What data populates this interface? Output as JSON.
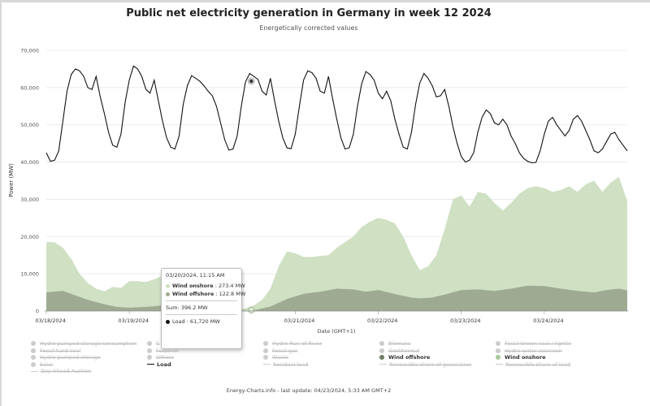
{
  "title": "Public net electricity generation in Germany in week 12 2024",
  "subtitle": "Energetically corrected values",
  "footer": "Energy-Charts.info - last update: 04/23/2024, 5:33 AM GMT+2",
  "colors": {
    "load": "#111111",
    "wind_onshore": "#cfe0c3",
    "wind_offshore": "#9eab92",
    "marker": "#aaaaaa"
  },
  "tooltip": {
    "date": "03/20/2024, 11:15 AM",
    "wind_onshore": "Wind onshore",
    "wind_onshore_value": ": 273.4 MW",
    "wind_offshore": "Wind offshore",
    "wind_offshore_value": ": 122.8 MW",
    "sum": "Sum: 396.2 MW",
    "load": "Load",
    "load_value": ": 61,720 MW"
  },
  "legend": [
    {
      "label": "Hydro pumped storage consumption",
      "active": false,
      "icon": "circle"
    },
    {
      "label": "C",
      "active": false,
      "icon": "circle"
    },
    {
      "label": "Hydro Run-of-River",
      "active": false,
      "icon": "circle"
    },
    {
      "label": "Biomass",
      "active": false,
      "icon": "circle"
    },
    {
      "label": "Fossil brown coal / lignite",
      "active": false,
      "icon": "circle"
    },
    {
      "label": "Fossil hard coal",
      "active": false,
      "icon": "circle"
    },
    {
      "label": "Fossil oil",
      "active": false,
      "icon": "circle"
    },
    {
      "label": "Fossil gas",
      "active": false,
      "icon": "circle"
    },
    {
      "label": "Geothermal",
      "active": false,
      "icon": "circle"
    },
    {
      "label": "Hydro water reservoir",
      "active": false,
      "icon": "circle"
    },
    {
      "label": "Hydro pumped storage",
      "active": false,
      "icon": "circle"
    },
    {
      "label": "Others",
      "active": false,
      "icon": "circle"
    },
    {
      "label": "Waste",
      "active": false,
      "icon": "circle"
    },
    {
      "label": "Wind offshore",
      "active": true,
      "icon": "circle"
    },
    {
      "label": "Wind onshore",
      "active": true,
      "icon": "circle"
    },
    {
      "label": "Solar",
      "active": false,
      "icon": "circle"
    },
    {
      "label": "Load",
      "active": true,
      "icon": "line"
    },
    {
      "label": "Residual load",
      "active": false,
      "icon": "line"
    },
    {
      "label": "Renewable share of generation",
      "active": false,
      "icon": "line"
    },
    {
      "label": "Renewable share of load",
      "active": false,
      "icon": "line"
    },
    {
      "label": "Day Ahead Auction",
      "active": false,
      "icon": "line"
    }
  ],
  "chart_data": {
    "type": "area",
    "xlabel": "Date (GMT+1)",
    "ylabel": "Power (MW)",
    "x_ticks": [
      "03/18/2024",
      "03/19/2024",
      "03/20/2024",
      "03/21/2024",
      "03/22/2024",
      "03/23/2024",
      "03/24/2024"
    ],
    "y_ticks": [
      "0",
      "10,000",
      "20,000",
      "30,000",
      "40,000",
      "50,000",
      "60,000",
      "70,000"
    ],
    "ylim": [
      0,
      70000
    ],
    "xlim_days": [
      0,
      7
    ],
    "grid": true,
    "series": [
      {
        "name": "Wind offshore",
        "kind": "area",
        "x_days": [
          0,
          0.08,
          0.2,
          0.35,
          0.5,
          0.7,
          0.85,
          1.0,
          1.2,
          1.4,
          1.6,
          1.75,
          1.9,
          2.0,
          2.1,
          2.2,
          2.3,
          2.5,
          2.7,
          2.9,
          3.1,
          3.3,
          3.5,
          3.7,
          3.85,
          4.0,
          4.1,
          4.25,
          4.4,
          4.5,
          4.65,
          4.8,
          5.0,
          5.2,
          5.4,
          5.6,
          5.8,
          6.0,
          6.2,
          6.4,
          6.6,
          6.75,
          6.9,
          7.0
        ],
        "values": [
          5000,
          5200,
          5400,
          4200,
          3000,
          1800,
          1100,
          900,
          1100,
          1500,
          2000,
          2200,
          1600,
          900,
          300,
          0,
          0,
          200,
          1200,
          3200,
          4600,
          5200,
          6000,
          5800,
          5200,
          5600,
          5100,
          4300,
          3600,
          3400,
          3600,
          4400,
          5600,
          5800,
          5400,
          6000,
          6800,
          6700,
          6000,
          5400,
          5000,
          5600,
          6000,
          5500
        ]
      },
      {
        "name": "Wind onshore",
        "kind": "area",
        "x_days": [
          0,
          0.1,
          0.2,
          0.3,
          0.4,
          0.5,
          0.6,
          0.7,
          0.8,
          0.9,
          1.0,
          1.1,
          1.2,
          1.3,
          1.4,
          1.5,
          1.6,
          1.7,
          1.8,
          1.9,
          2.0,
          2.05,
          2.1,
          2.2,
          2.3,
          2.4,
          2.5,
          2.6,
          2.7,
          2.8,
          2.9,
          3.0,
          3.1,
          3.2,
          3.3,
          3.4,
          3.5,
          3.6,
          3.7,
          3.8,
          3.9,
          4.0,
          4.1,
          4.2,
          4.3,
          4.4,
          4.5,
          4.6,
          4.7,
          4.8,
          4.9,
          5.0,
          5.1,
          5.2,
          5.3,
          5.4,
          5.5,
          5.6,
          5.7,
          5.8,
          5.9,
          6.0,
          6.1,
          6.2,
          6.3,
          6.4,
          6.5,
          6.6,
          6.7,
          6.8,
          6.9,
          7.0
        ],
        "values": [
          18500,
          18500,
          17000,
          14000,
          10000,
          7500,
          6000,
          5300,
          6500,
          6200,
          8000,
          8000,
          7800,
          8500,
          9500,
          8500,
          8200,
          7500,
          5200,
          3500,
          1600,
          800,
          400,
          400,
          500,
          700,
          1500,
          3000,
          6000,
          12000,
          16000,
          15500,
          14500,
          14500,
          14800,
          15000,
          17000,
          18500,
          20000,
          22500,
          24000,
          25000,
          24500,
          23500,
          20000,
          15000,
          11000,
          12000,
          15000,
          22000,
          30000,
          31000,
          28000,
          32000,
          31500,
          29000,
          27000,
          29000,
          31500,
          33000,
          33500,
          33000,
          32000,
          32500,
          33500,
          32000,
          34000,
          35000,
          32000,
          34500,
          36000,
          29500
        ]
      },
      {
        "name": "Load",
        "kind": "line",
        "x_days": [
          0,
          0.05,
          0.1,
          0.15,
          0.2,
          0.25,
          0.3,
          0.35,
          0.4,
          0.45,
          0.5,
          0.55,
          0.6,
          0.65,
          0.7,
          0.75,
          0.8,
          0.85,
          0.9,
          0.95,
          1.0,
          1.05,
          1.1,
          1.15,
          1.2,
          1.25,
          1.3,
          1.35,
          1.4,
          1.45,
          1.5,
          1.55,
          1.6,
          1.65,
          1.7,
          1.75,
          1.8,
          1.85,
          1.9,
          1.95,
          2.0,
          2.05,
          2.1,
          2.15,
          2.2,
          2.25,
          2.3,
          2.35,
          2.4,
          2.45,
          2.5,
          2.55,
          2.6,
          2.65,
          2.7,
          2.75,
          2.8,
          2.85,
          2.9,
          2.95,
          3.0,
          3.05,
          3.1,
          3.15,
          3.2,
          3.25,
          3.3,
          3.35,
          3.4,
          3.45,
          3.5,
          3.55,
          3.6,
          3.65,
          3.7,
          3.75,
          3.8,
          3.85,
          3.9,
          3.95,
          4.0,
          4.05,
          4.1,
          4.15,
          4.2,
          4.25,
          4.3,
          4.35,
          4.4,
          4.45,
          4.5,
          4.55,
          4.6,
          4.65,
          4.7,
          4.75,
          4.8,
          4.85,
          4.9,
          4.95,
          5.0,
          5.05,
          5.1,
          5.15,
          5.2,
          5.25,
          5.3,
          5.35,
          5.4,
          5.45,
          5.5,
          5.55,
          5.6,
          5.65,
          5.7,
          5.75,
          5.8,
          5.85,
          5.9,
          5.95,
          6.0,
          6.05,
          6.1,
          6.15,
          6.2,
          6.25,
          6.3,
          6.35,
          6.4,
          6.45,
          6.5,
          6.55,
          6.6,
          6.65,
          6.7,
          6.75,
          6.8,
          6.85,
          6.9,
          6.95,
          7.0
        ],
        "values": [
          42500,
          40200,
          40500,
          43000,
          51000,
          59000,
          63500,
          65000,
          64500,
          63000,
          60000,
          59500,
          63000,
          57500,
          53000,
          48000,
          44500,
          44000,
          47500,
          56000,
          62000,
          65800,
          65000,
          63000,
          59500,
          58500,
          62000,
          56500,
          51000,
          46500,
          44000,
          43500,
          47000,
          55500,
          60500,
          63200,
          62500,
          61700,
          60500,
          59000,
          57800,
          55000,
          50500,
          46000,
          43200,
          43500,
          47000,
          55000,
          61500,
          63800,
          63000,
          62200,
          59000,
          58000,
          62500,
          56500,
          51000,
          46500,
          43800,
          43600,
          47500,
          55000,
          62000,
          64500,
          64000,
          62500,
          59000,
          58500,
          63000,
          57000,
          51500,
          46500,
          43500,
          43800,
          47500,
          55000,
          61000,
          64300,
          63500,
          62000,
          58500,
          57000,
          59000,
          56500,
          51500,
          47500,
          44000,
          43500,
          48000,
          55500,
          61200,
          63800,
          62500,
          60500,
          57500,
          57800,
          59500,
          55000,
          49500,
          45000,
          41500,
          40000,
          40500,
          42500,
          48000,
          52000,
          54000,
          53000,
          50500,
          50000,
          51500,
          50000,
          47000,
          45000,
          42500,
          41000,
          40200,
          39800,
          39900,
          43000,
          47500,
          51000,
          52000,
          50000,
          48500,
          47000,
          48500,
          51500,
          52500,
          51000,
          48500,
          46000,
          43000,
          42500,
          43500,
          45500,
          47500,
          48000,
          46000,
          44500,
          43000
        ]
      }
    ],
    "marker": {
      "x_day": 2.47,
      "value": 61720
    }
  }
}
